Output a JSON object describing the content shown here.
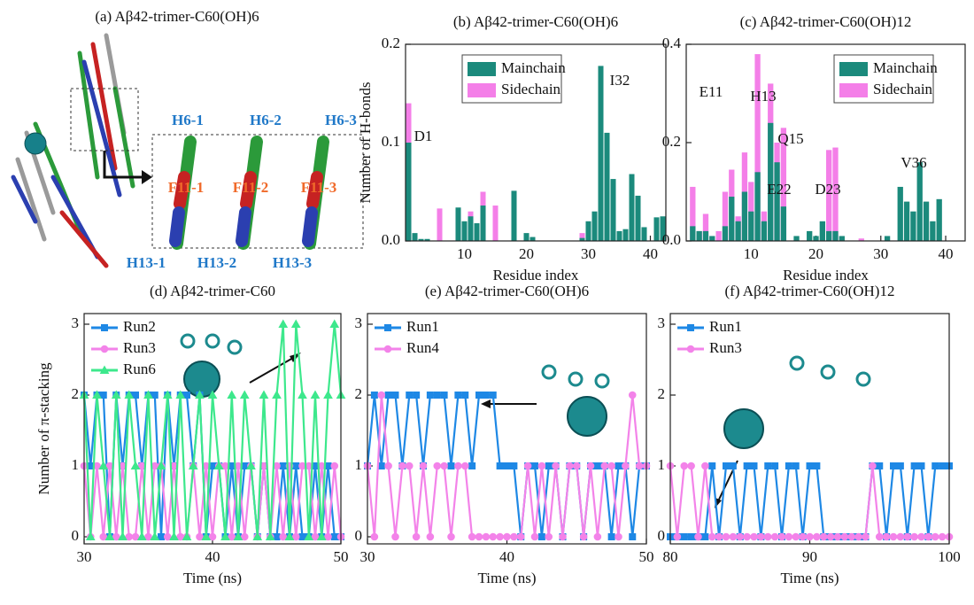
{
  "chart_data": [
    {
      "type": "image",
      "title": "(a) Aβ42-trimer-C60(OH)6",
      "labels": [
        "H6-1",
        "H6-2",
        "H6-3",
        "F11-1",
        "F11-2",
        "F11-3",
        "H13-1",
        "H13-2",
        "H13-3"
      ]
    },
    {
      "type": "bar",
      "title": "(b) Aβ42-trimer-C60(OH)6",
      "x_label": "Residue index",
      "y_label": "Number of H-bonds",
      "x": [
        1,
        2,
        3,
        4,
        5,
        6,
        7,
        8,
        9,
        10,
        11,
        12,
        13,
        14,
        15,
        16,
        17,
        18,
        19,
        20,
        21,
        22,
        23,
        24,
        25,
        26,
        27,
        28,
        29,
        30,
        31,
        32,
        33,
        34,
        35,
        36,
        37,
        38,
        39,
        40,
        41,
        42
      ],
      "series": [
        {
          "name": "Mainchain",
          "color": "#1b8a7c",
          "values": [
            0.1,
            0.008,
            0.002,
            0.002,
            0,
            0,
            0,
            0,
            0.034,
            0.02,
            0.025,
            0.018,
            0.036,
            0,
            0,
            0,
            0,
            0.051,
            0,
            0.008,
            0.004,
            0,
            0,
            0,
            0,
            0,
            0,
            0,
            0.003,
            0.02,
            0.03,
            0.178,
            0.11,
            0.063,
            0.01,
            0.012,
            0.068,
            0.046,
            0.014,
            0,
            0.024,
            0.025
          ]
        },
        {
          "name": "Sidechain",
          "color": "#f47fe8",
          "values": [
            0.14,
            0,
            0,
            0,
            0,
            0.033,
            0,
            0,
            0.028,
            0,
            0.03,
            0,
            0.05,
            0,
            0.036,
            0,
            0,
            0,
            0,
            0,
            0,
            0,
            0,
            0,
            0,
            0,
            0,
            0,
            0.008,
            0,
            0,
            0,
            0,
            0,
            0,
            0,
            0,
            0,
            0,
            0,
            0,
            0
          ]
        }
      ],
      "xlim": [
        0.5,
        42.5
      ],
      "ylim": [
        0,
        0.2
      ],
      "xticks": [
        10,
        20,
        30,
        40
      ],
      "yticks": [
        {
          "value": 0,
          "label": "0.0"
        },
        {
          "value": 0.1,
          "label": "0.1"
        },
        {
          "value": 0.2,
          "label": "0.2"
        }
      ],
      "annotations": [
        "D1",
        "I32"
      ]
    },
    {
      "type": "bar",
      "title": "(c) Aβ42-trimer-C60(OH)12",
      "x_label": "Residue index",
      "x": [
        1,
        2,
        3,
        4,
        5,
        6,
        7,
        8,
        9,
        10,
        11,
        12,
        13,
        14,
        15,
        16,
        17,
        18,
        19,
        20,
        21,
        22,
        23,
        24,
        25,
        26,
        27,
        28,
        29,
        30,
        31,
        32,
        33,
        34,
        35,
        36,
        37,
        38,
        39,
        40
      ],
      "series": [
        {
          "name": "Mainchain",
          "color": "#1b8a7c",
          "values": [
            0.03,
            0.02,
            0.02,
            0.01,
            0,
            0.03,
            0.09,
            0.04,
            0.1,
            0.06,
            0.14,
            0.04,
            0.24,
            0.16,
            0.07,
            0,
            0.01,
            0,
            0.02,
            0.01,
            0.04,
            0.02,
            0.02,
            0.01,
            0,
            0,
            0,
            0,
            0,
            0,
            0.01,
            0,
            0.11,
            0.08,
            0.06,
            0.16,
            0.08,
            0.04,
            0.085,
            0
          ]
        },
        {
          "name": "Sidechain",
          "color": "#f47fe8",
          "values": [
            0.11,
            0.02,
            0.055,
            0,
            0.02,
            0.1,
            0.145,
            0.05,
            0.18,
            0.12,
            0.38,
            0.06,
            0.32,
            0.2,
            0.23,
            0,
            0,
            0,
            0,
            0,
            0,
            0.185,
            0.19,
            0,
            0,
            0,
            0.005,
            0,
            0,
            0,
            0,
            0,
            0,
            0,
            0,
            0,
            0,
            0,
            0,
            0
          ]
        }
      ],
      "xlim": [
        0,
        43
      ],
      "ylim": [
        0,
        0.4
      ],
      "xticks": [
        10,
        20,
        30,
        40
      ],
      "yticks": [
        {
          "value": 0,
          "label": "0.0"
        },
        {
          "value": 0.2,
          "label": "0.2"
        },
        {
          "value": 0.4,
          "label": "0.4"
        }
      ],
      "annotations": [
        "E11",
        "H13",
        "Q15",
        "E22",
        "D23",
        "V36"
      ]
    },
    {
      "type": "line",
      "title": "(d) Aβ42-trimer-C60",
      "x_label": "Time (ns)",
      "y_label": "Number of π-stacking",
      "x": [
        30,
        30.5,
        31,
        31.5,
        32,
        32.5,
        33,
        33.5,
        34,
        34.5,
        35,
        35.5,
        36,
        36.5,
        37,
        37.5,
        38,
        38.5,
        39,
        39.5,
        40,
        40.5,
        41,
        41.5,
        42,
        42.5,
        43,
        43.5,
        44,
        44.5,
        45,
        45.5,
        46,
        46.5,
        47,
        47.5,
        48,
        48.5,
        49,
        49.5,
        50
      ],
      "series": [
        {
          "name": "Run2",
          "color": "#1e88e5",
          "marker": "square",
          "values": [
            2,
            1,
            2,
            2,
            0,
            2,
            1,
            2,
            2,
            1,
            2,
            2,
            0,
            2,
            1,
            2,
            2,
            1,
            2,
            0,
            1,
            1,
            0,
            1,
            0,
            1,
            1,
            0,
            1,
            0,
            0,
            1,
            0,
            1,
            0,
            0,
            1,
            0,
            1,
            0,
            0
          ]
        },
        {
          "name": "Run3",
          "color": "#f383e9",
          "marker": "circle",
          "values": [
            1,
            0,
            1,
            0,
            1,
            0,
            1,
            0,
            0,
            1,
            0,
            1,
            1,
            0,
            1,
            0,
            0,
            1,
            0,
            1,
            0,
            1,
            1,
            0,
            1,
            0,
            1,
            0,
            1,
            0,
            1,
            0,
            1,
            0,
            1,
            1,
            0,
            1,
            0,
            1,
            0
          ]
        },
        {
          "name": "Run6",
          "color": "#3de88c",
          "marker": "triangle",
          "values": [
            2,
            0,
            2,
            1,
            0,
            2,
            0,
            2,
            1,
            0,
            2,
            0,
            1,
            2,
            0,
            2,
            0,
            1,
            2,
            0,
            2,
            1,
            0,
            2,
            0,
            2,
            1,
            0,
            2,
            0,
            2,
            3,
            0,
            3,
            2,
            0,
            2,
            0,
            2,
            3,
            2
          ]
        }
      ],
      "xlim": [
        30,
        50
      ],
      "ylim": [
        -0.1,
        3.15
      ],
      "xticks": [
        30,
        40,
        50
      ],
      "yticks": [
        0,
        1,
        2,
        3
      ]
    },
    {
      "type": "line",
      "title": "(e) Aβ42-trimer-C60(OH)6",
      "x_label": "Time (ns)",
      "x": [
        30,
        30.5,
        31,
        31.5,
        32,
        32.5,
        33,
        33.5,
        34,
        34.5,
        35,
        35.5,
        36,
        36.5,
        37,
        37.5,
        38,
        38.5,
        39,
        39.5,
        40,
        40.5,
        41,
        41.5,
        42,
        42.5,
        43,
        43.5,
        44,
        44.5,
        45,
        45.5,
        46,
        46.5,
        47,
        47.5,
        48,
        48.5,
        49,
        49.5,
        50
      ],
      "series": [
        {
          "name": "Run1",
          "color": "#1e88e5",
          "marker": "square",
          "values": [
            1,
            2,
            1,
            2,
            2,
            1,
            2,
            2,
            1,
            2,
            2,
            2,
            1,
            2,
            2,
            1,
            2,
            2,
            2,
            1,
            1,
            1,
            0,
            1,
            1,
            0,
            1,
            1,
            0,
            1,
            1,
            0,
            1,
            1,
            1,
            0,
            1,
            1,
            0,
            1,
            1
          ]
        },
        {
          "name": "Run4",
          "color": "#f383e9",
          "marker": "circle",
          "values": [
            1,
            0,
            2,
            1,
            0,
            1,
            1,
            0,
            1,
            0,
            1,
            1,
            0,
            1,
            1,
            0,
            0,
            0,
            0,
            0,
            0,
            0,
            0,
            1,
            0,
            1,
            0,
            1,
            0,
            1,
            1,
            0,
            1,
            0,
            1,
            1,
            0,
            1,
            2,
            1,
            1
          ]
        }
      ],
      "xlim": [
        30,
        50
      ],
      "ylim": [
        -0.1,
        3.15
      ],
      "xticks": [
        30,
        40,
        50
      ],
      "yticks": [
        0,
        1,
        2,
        3
      ]
    },
    {
      "type": "line",
      "title": "(f) Aβ42-trimer-C60(OH)12",
      "x_label": "Time (ns)",
      "x": [
        80,
        80.5,
        81,
        81.5,
        82,
        82.5,
        83,
        83.5,
        84,
        84.5,
        85,
        85.5,
        86,
        86.5,
        87,
        87.5,
        88,
        88.5,
        89,
        89.5,
        90,
        90.5,
        91,
        91.5,
        92,
        92.5,
        93,
        93.5,
        94,
        94.5,
        95,
        95.5,
        96,
        96.5,
        97,
        97.5,
        98,
        98.5,
        99,
        99.5,
        100
      ],
      "series": [
        {
          "name": "Run1",
          "color": "#1e88e5",
          "marker": "square",
          "values": [
            0,
            0,
            0,
            0,
            0,
            0,
            1,
            0,
            1,
            1,
            0,
            1,
            1,
            0,
            1,
            1,
            0,
            1,
            1,
            0,
            1,
            1,
            0,
            0,
            0,
            0,
            0,
            0,
            0,
            1,
            1,
            0,
            1,
            1,
            0,
            1,
            1,
            0,
            1,
            1,
            1
          ]
        },
        {
          "name": "Run3",
          "color": "#f383e9",
          "marker": "circle",
          "values": [
            1,
            0,
            1,
            1,
            0,
            1,
            0,
            0,
            0,
            0,
            0,
            0,
            0,
            0,
            0,
            0,
            0,
            0,
            0,
            0,
            0,
            0,
            0,
            0,
            0,
            0,
            0,
            0,
            0,
            1,
            0,
            0,
            0,
            0,
            0,
            0,
            0,
            0,
            0,
            0,
            0
          ]
        }
      ],
      "xlim": [
        80,
        100
      ],
      "ylim": [
        -0.1,
        3.15
      ],
      "xticks": [
        80,
        90,
        100
      ],
      "yticks": [
        0,
        1,
        2,
        3
      ]
    }
  ]
}
